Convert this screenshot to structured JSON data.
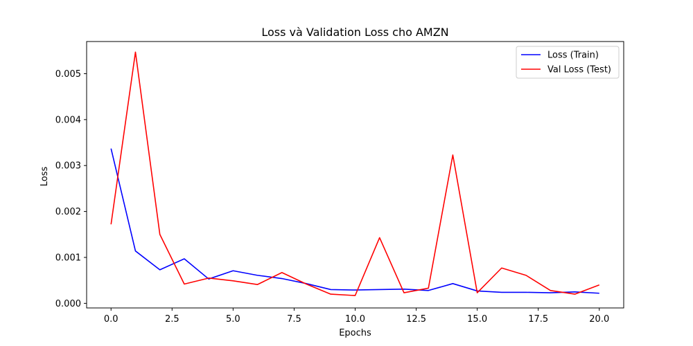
{
  "chart_data": {
    "type": "line",
    "title": "Loss và Validation Loss cho AMZN",
    "xlabel": "Epochs",
    "ylabel": "Loss",
    "xlim": [
      -1.0,
      21.0
    ],
    "ylim": [
      -0.0001,
      0.0057
    ],
    "xticks": [
      0.0,
      2.5,
      5.0,
      7.5,
      10.0,
      12.5,
      15.0,
      17.5,
      20.0
    ],
    "xtick_labels": [
      "0.0",
      "2.5",
      "5.0",
      "7.5",
      "10.0",
      "12.5",
      "15.0",
      "17.5",
      "20.0"
    ],
    "yticks": [
      0.0,
      0.001,
      0.002,
      0.003,
      0.004,
      0.005
    ],
    "ytick_labels": [
      "0.000",
      "0.001",
      "0.002",
      "0.003",
      "0.004",
      "0.005"
    ],
    "grid": false,
    "legend_position": "top-right",
    "x": [
      0,
      1,
      2,
      3,
      4,
      5,
      6,
      7,
      8,
      9,
      10,
      11,
      12,
      13,
      14,
      15,
      16,
      17,
      18,
      19,
      20
    ],
    "series": [
      {
        "name": "Loss (Train)",
        "color": "#0000ff",
        "values": [
          0.00337,
          0.00114,
          0.00073,
          0.00097,
          0.00053,
          0.00071,
          0.00061,
          0.00054,
          0.00043,
          0.0003,
          0.00029,
          0.0003,
          0.00031,
          0.00028,
          0.00043,
          0.00027,
          0.00024,
          0.00024,
          0.00023,
          0.00025,
          0.00022
        ]
      },
      {
        "name": "Val Loss (Test)",
        "color": "#ff0000",
        "values": [
          0.00172,
          0.00547,
          0.0015,
          0.00042,
          0.00055,
          0.00049,
          0.00041,
          0.00067,
          0.00042,
          0.0002,
          0.00017,
          0.00143,
          0.00023,
          0.00033,
          0.00323,
          0.00023,
          0.00077,
          0.00061,
          0.00028,
          0.0002,
          0.0004
        ]
      }
    ]
  }
}
